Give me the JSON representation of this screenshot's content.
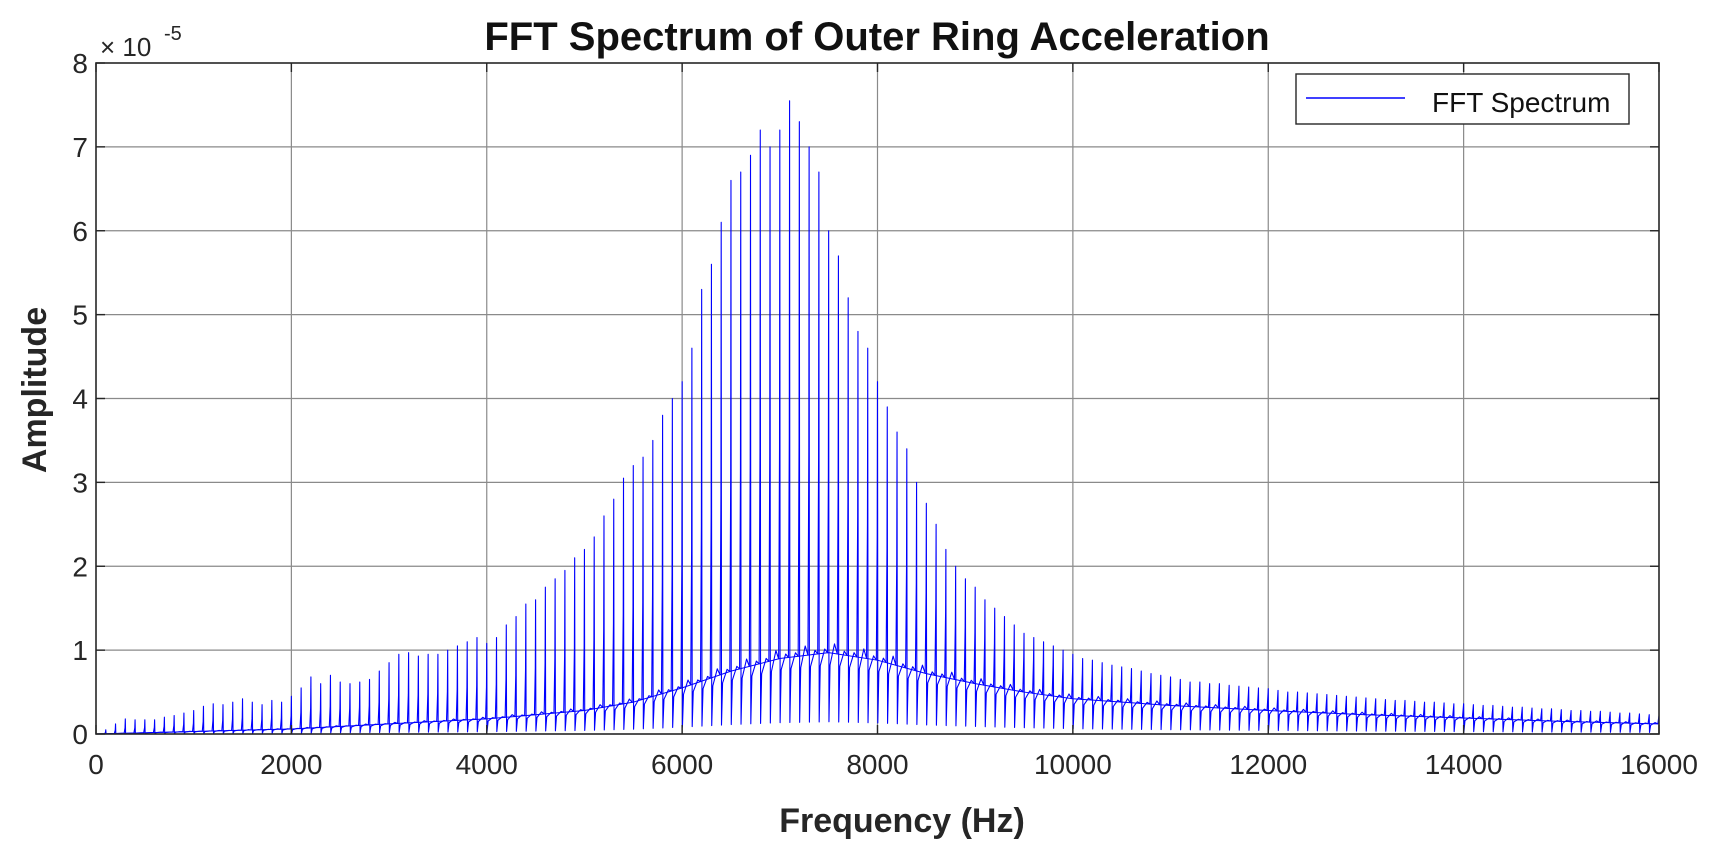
{
  "chart_data": {
    "type": "line",
    "title": "FFT Spectrum of Outer Ring Acceleration",
    "xlabel": "Frequency (Hz)",
    "ylabel": "Amplitude",
    "y_exponent_label": "× 10",
    "y_exponent_power": "-5",
    "xlim": [
      0,
      16000
    ],
    "ylim": [
      0,
      8
    ],
    "x_ticks": [
      0,
      2000,
      4000,
      6000,
      8000,
      10000,
      12000,
      14000,
      16000
    ],
    "y_ticks": [
      0,
      1,
      2,
      3,
      4,
      5,
      6,
      7,
      8
    ],
    "grid": true,
    "legend": {
      "position": "top-right",
      "entries": [
        "FFT Spectrum"
      ]
    },
    "series": [
      {
        "name": "FFT Spectrum",
        "color": "#0000ff",
        "peak_spacing_hz": 100,
        "peaks": [
          [
            100,
            0.05
          ],
          [
            200,
            0.12
          ],
          [
            300,
            0.18
          ],
          [
            400,
            0.17
          ],
          [
            500,
            0.17
          ],
          [
            600,
            0.17
          ],
          [
            700,
            0.2
          ],
          [
            800,
            0.22
          ],
          [
            900,
            0.25
          ],
          [
            1000,
            0.28
          ],
          [
            1100,
            0.33
          ],
          [
            1200,
            0.36
          ],
          [
            1300,
            0.35
          ],
          [
            1400,
            0.38
          ],
          [
            1500,
            0.42
          ],
          [
            1600,
            0.38
          ],
          [
            1700,
            0.35
          ],
          [
            1800,
            0.4
          ],
          [
            1900,
            0.38
          ],
          [
            2000,
            0.45
          ],
          [
            2100,
            0.55
          ],
          [
            2200,
            0.68
          ],
          [
            2300,
            0.6
          ],
          [
            2400,
            0.7
          ],
          [
            2500,
            0.62
          ],
          [
            2600,
            0.6
          ],
          [
            2700,
            0.62
          ],
          [
            2800,
            0.65
          ],
          [
            2900,
            0.75
          ],
          [
            3000,
            0.85
          ],
          [
            3100,
            0.95
          ],
          [
            3200,
            0.97
          ],
          [
            3300,
            0.93
          ],
          [
            3400,
            0.95
          ],
          [
            3500,
            0.95
          ],
          [
            3600,
            1.0
          ],
          [
            3700,
            1.05
          ],
          [
            3800,
            1.1
          ],
          [
            3900,
            1.15
          ],
          [
            4000,
            1.08
          ],
          [
            4100,
            1.15
          ],
          [
            4200,
            1.3
          ],
          [
            4300,
            1.4
          ],
          [
            4400,
            1.55
          ],
          [
            4500,
            1.6
          ],
          [
            4600,
            1.75
          ],
          [
            4700,
            1.85
          ],
          [
            4800,
            1.95
          ],
          [
            4900,
            2.1
          ],
          [
            5000,
            2.2
          ],
          [
            5100,
            2.35
          ],
          [
            5200,
            2.6
          ],
          [
            5300,
            2.8
          ],
          [
            5400,
            3.05
          ],
          [
            5500,
            3.2
          ],
          [
            5600,
            3.3
          ],
          [
            5700,
            3.5
          ],
          [
            5800,
            3.8
          ],
          [
            5900,
            4.0
          ],
          [
            6000,
            4.2
          ],
          [
            6100,
            4.6
          ],
          [
            6200,
            5.3
          ],
          [
            6300,
            5.6
          ],
          [
            6400,
            6.1
          ],
          [
            6500,
            6.6
          ],
          [
            6600,
            6.7
          ],
          [
            6700,
            6.9
          ],
          [
            6800,
            7.2
          ],
          [
            6900,
            7.0
          ],
          [
            7000,
            7.2
          ],
          [
            7100,
            7.55
          ],
          [
            7200,
            7.3
          ],
          [
            7300,
            7.0
          ],
          [
            7400,
            6.7
          ],
          [
            7500,
            6.0
          ],
          [
            7600,
            5.7
          ],
          [
            7700,
            5.2
          ],
          [
            7800,
            4.8
          ],
          [
            7900,
            4.6
          ],
          [
            8000,
            4.2
          ],
          [
            8100,
            3.9
          ],
          [
            8200,
            3.6
          ],
          [
            8300,
            3.4
          ],
          [
            8400,
            3.0
          ],
          [
            8500,
            2.75
          ],
          [
            8600,
            2.5
          ],
          [
            8700,
            2.2
          ],
          [
            8800,
            2.0
          ],
          [
            8900,
            1.85
          ],
          [
            9000,
            1.75
          ],
          [
            9100,
            1.6
          ],
          [
            9200,
            1.5
          ],
          [
            9300,
            1.4
          ],
          [
            9400,
            1.3
          ],
          [
            9500,
            1.2
          ],
          [
            9600,
            1.15
          ],
          [
            9700,
            1.1
          ],
          [
            9800,
            1.05
          ],
          [
            9900,
            1.0
          ],
          [
            10000,
            0.95
          ],
          [
            10100,
            0.9
          ],
          [
            10200,
            0.88
          ],
          [
            10300,
            0.85
          ],
          [
            10400,
            0.82
          ],
          [
            10500,
            0.8
          ],
          [
            10600,
            0.78
          ],
          [
            10700,
            0.75
          ],
          [
            10800,
            0.72
          ],
          [
            10900,
            0.7
          ],
          [
            11000,
            0.68
          ],
          [
            11100,
            0.65
          ],
          [
            11200,
            0.62
          ],
          [
            11300,
            0.62
          ],
          [
            11400,
            0.6
          ],
          [
            11500,
            0.6
          ],
          [
            11600,
            0.58
          ],
          [
            11700,
            0.57
          ],
          [
            11800,
            0.56
          ],
          [
            11900,
            0.55
          ],
          [
            12000,
            0.54
          ],
          [
            12100,
            0.52
          ],
          [
            12200,
            0.5
          ],
          [
            12300,
            0.5
          ],
          [
            12400,
            0.49
          ],
          [
            12500,
            0.48
          ],
          [
            12600,
            0.47
          ],
          [
            12700,
            0.46
          ],
          [
            12800,
            0.45
          ],
          [
            12900,
            0.44
          ],
          [
            13000,
            0.43
          ],
          [
            13100,
            0.42
          ],
          [
            13200,
            0.41
          ],
          [
            13300,
            0.4
          ],
          [
            13400,
            0.4
          ],
          [
            13500,
            0.39
          ],
          [
            13600,
            0.38
          ],
          [
            13700,
            0.38
          ],
          [
            13800,
            0.37
          ],
          [
            13900,
            0.36
          ],
          [
            14000,
            0.36
          ],
          [
            14100,
            0.35
          ],
          [
            14200,
            0.34
          ],
          [
            14300,
            0.34
          ],
          [
            14400,
            0.33
          ],
          [
            14500,
            0.32
          ],
          [
            14600,
            0.32
          ],
          [
            14700,
            0.31
          ],
          [
            14800,
            0.3
          ],
          [
            14900,
            0.3
          ],
          [
            15000,
            0.29
          ],
          [
            15100,
            0.28
          ],
          [
            15200,
            0.28
          ],
          [
            15300,
            0.27
          ],
          [
            15400,
            0.27
          ],
          [
            15500,
            0.26
          ],
          [
            15600,
            0.25
          ],
          [
            15700,
            0.25
          ],
          [
            15800,
            0.24
          ],
          [
            15900,
            0.23
          ],
          [
            16000,
            0.22
          ]
        ],
        "baseline": [
          [
            0,
            0.0
          ],
          [
            1000,
            0.03
          ],
          [
            2000,
            0.06
          ],
          [
            3000,
            0.12
          ],
          [
            4000,
            0.18
          ],
          [
            5000,
            0.28
          ],
          [
            5500,
            0.38
          ],
          [
            6000,
            0.55
          ],
          [
            6500,
            0.75
          ],
          [
            7000,
            0.9
          ],
          [
            7500,
            0.97
          ],
          [
            8000,
            0.88
          ],
          [
            8500,
            0.72
          ],
          [
            9000,
            0.6
          ],
          [
            9500,
            0.5
          ],
          [
            10000,
            0.42
          ],
          [
            11000,
            0.34
          ],
          [
            12000,
            0.28
          ],
          [
            13000,
            0.23
          ],
          [
            14000,
            0.19
          ],
          [
            15000,
            0.15
          ],
          [
            16000,
            0.12
          ]
        ]
      }
    ]
  }
}
